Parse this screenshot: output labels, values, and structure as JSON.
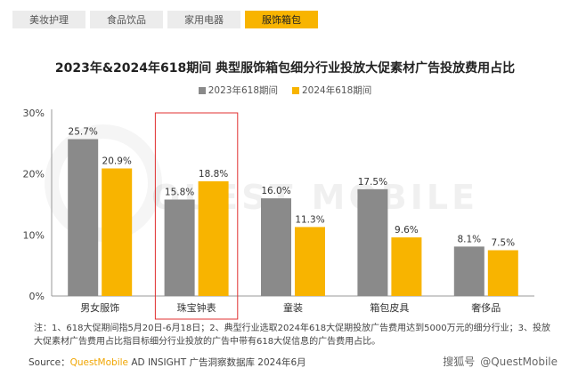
{
  "tabs": [
    {
      "label": "美妆护理",
      "active": false
    },
    {
      "label": "食品饮品",
      "active": false
    },
    {
      "label": "家用电器",
      "active": false
    },
    {
      "label": "服饰箱包",
      "active": true
    }
  ],
  "colors": {
    "series_2023": "#8a8a8a",
    "series_2024": "#f8b400",
    "highlight": "#e03030"
  },
  "chart_data": {
    "type": "bar",
    "title": "2023年&2024年618期间 典型服饰箱包细分行业投放大促素材广告投放费用占比",
    "categories": [
      "男女服饰",
      "珠宝钟表",
      "童装",
      "箱包皮具",
      "奢侈品"
    ],
    "series": [
      {
        "name": "2023年618期间",
        "values": [
          25.7,
          15.8,
          16.0,
          17.5,
          8.1
        ],
        "labels": [
          "25.7%",
          "15.8%",
          "16.0%",
          "17.5%",
          "8.1%"
        ]
      },
      {
        "name": "2024年618期间",
        "values": [
          20.9,
          18.8,
          11.3,
          9.6,
          7.5
        ],
        "labels": [
          "20.9%",
          "18.8%",
          "11.3%",
          "9.6%",
          "7.5%"
        ]
      }
    ],
    "ylim": [
      0,
      30
    ],
    "yticks": [
      "0%",
      "10%",
      "20%",
      "30%"
    ],
    "highlighted_category": "珠宝钟表",
    "legend_position": "top-center",
    "grid": false
  },
  "note": "注：1、618大促期间指5月20日-6月18日；2、典型行业选取2024年618大促期投放广告费用达到5000万元的细分行业；3、投放大促素材广告费用占比指目标细分行业投放的广告中带有618大促信息的广告费用占比。",
  "source": {
    "prefix": "Source：",
    "brand": "QuestMobile",
    "rest": " AD INSIGHT 广告洞察数据库 2024年6月"
  },
  "footer": {
    "platform": "搜狐号",
    "account": "@QuestMobile"
  },
  "watermark": "QUEST MOBILE"
}
